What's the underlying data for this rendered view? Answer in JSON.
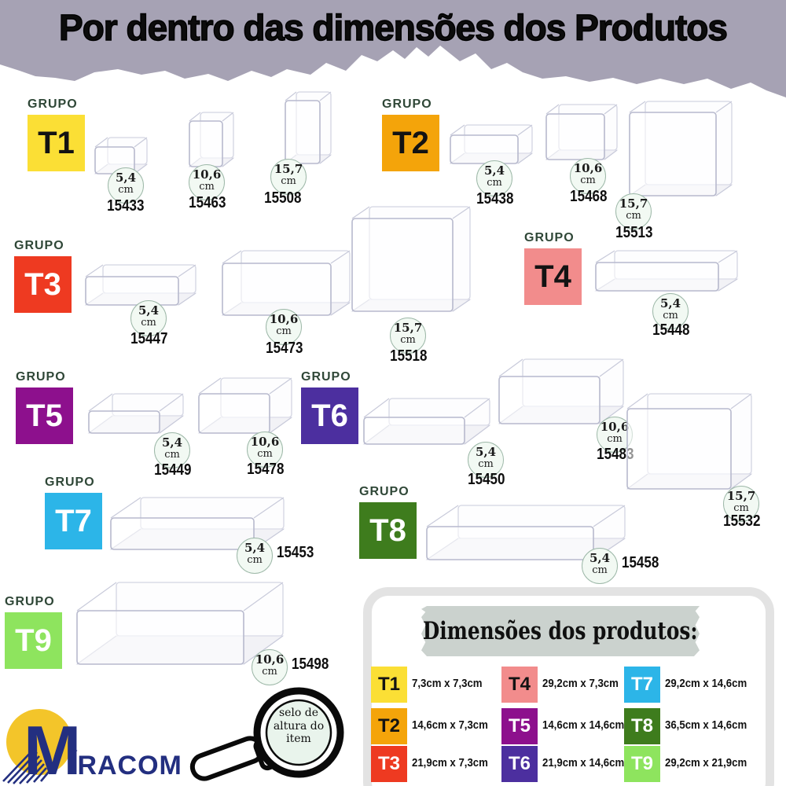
{
  "title": "Por dentro das dimensões dos Produtos",
  "group_word": "GRUPO",
  "unit": "cm",
  "theme": {
    "band": "#A6A2B4",
    "grupo_text": "#2F4737",
    "tape": "#CBD2CE",
    "navy": "#232F80",
    "sun": "#F3C52A",
    "lens": "#E9F4EC"
  },
  "groups": [
    {
      "id": "T1",
      "color": "#FBDF35",
      "fg": "#131313"
    },
    {
      "id": "T2",
      "color": "#F4A40A",
      "fg": "#131313"
    },
    {
      "id": "T3",
      "color": "#EE3A21",
      "fg": "#FFFFFF"
    },
    {
      "id": "T4",
      "color": "#F28C8C",
      "fg": "#131313"
    },
    {
      "id": "T5",
      "color": "#8D108D",
      "fg": "#FFFFFF"
    },
    {
      "id": "T6",
      "color": "#4C2F9F",
      "fg": "#FFFFFF"
    },
    {
      "id": "T7",
      "color": "#2CB5E8",
      "fg": "#FFFFFF"
    },
    {
      "id": "T8",
      "color": "#3E7C1D",
      "fg": "#FFFFFF"
    },
    {
      "id": "T9",
      "color": "#8EE45E",
      "fg": "#FFFFFF"
    }
  ],
  "products": [
    {
      "group": "T1",
      "size": "5,4",
      "code": "15433"
    },
    {
      "group": "T1",
      "size": "10,6",
      "code": "15463"
    },
    {
      "group": "T1",
      "size": "15,7",
      "code": "15508"
    },
    {
      "group": "T2",
      "size": "5,4",
      "code": "15438"
    },
    {
      "group": "T2",
      "size": "10,6",
      "code": "15468"
    },
    {
      "group": "T2",
      "size": "15,7",
      "code": "15513"
    },
    {
      "group": "T3",
      "size": "5,4",
      "code": "15447"
    },
    {
      "group": "T3",
      "size": "10,6",
      "code": "15473"
    },
    {
      "group": "T3",
      "size": "15,7",
      "code": "15518"
    },
    {
      "group": "T4",
      "size": "5,4",
      "code": "15448"
    },
    {
      "group": "T5",
      "size": "5,4",
      "code": "15449"
    },
    {
      "group": "T5",
      "size": "10,6",
      "code": "15478"
    },
    {
      "group": "T6",
      "size": "5,4",
      "code": "15450"
    },
    {
      "group": "T6",
      "size": "10,6",
      "code": "15483"
    },
    {
      "group": "T6",
      "size": "15,7",
      "code": "15532"
    },
    {
      "group": "T7",
      "size": "5,4",
      "code": "15453"
    },
    {
      "group": "T8",
      "size": "5,4",
      "code": "15458"
    },
    {
      "group": "T9",
      "size": "10,6",
      "code": "15498"
    }
  ],
  "legend": {
    "title": "Dimensões dos produtos:",
    "items": [
      {
        "id": "T1",
        "dims": "7,3cm x 7,3cm"
      },
      {
        "id": "T2",
        "dims": "14,6cm x 7,3cm"
      },
      {
        "id": "T3",
        "dims": "21,9cm x 7,3cm"
      },
      {
        "id": "T4",
        "dims": "29,2cm x 7,3cm"
      },
      {
        "id": "T5",
        "dims": "14,6cm x 14,6cm"
      },
      {
        "id": "T6",
        "dims": "21,9cm x 14,6cm"
      },
      {
        "id": "T7",
        "dims": "29,2cm x 14,6cm"
      },
      {
        "id": "T8",
        "dims": "36,5cm x 14,6cm"
      },
      {
        "id": "T9",
        "dims": "29,2cm x 21,9cm"
      }
    ]
  },
  "magnifier_label": "selo de altura do item",
  "logo": {
    "initial": "M",
    "rest": "ÍRACOM"
  }
}
